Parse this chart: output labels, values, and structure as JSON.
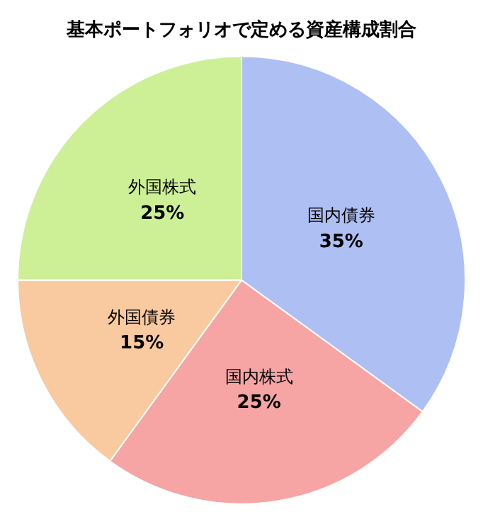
{
  "chart_data": {
    "type": "pie",
    "title": "基本ポートフォリオで定める資産構成割合",
    "categories": [
      "国内債券",
      "国内株式",
      "外国債券",
      "外国株式"
    ],
    "values": [
      35,
      25,
      15,
      25
    ],
    "value_labels": [
      "35%",
      "25%",
      "15%",
      "25%"
    ],
    "colors": [
      "#aebff4",
      "#f6a4a4",
      "#f9caa0",
      "#cdf096"
    ],
    "legend": false
  }
}
